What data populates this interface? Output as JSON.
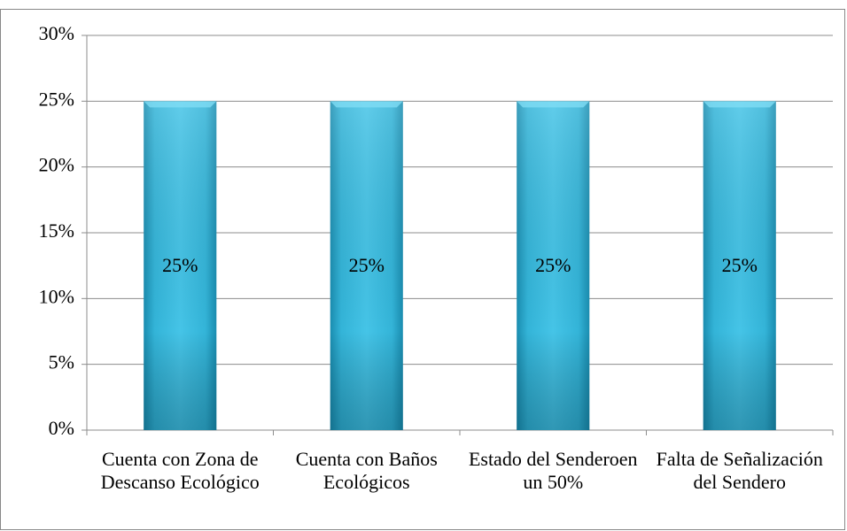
{
  "chart_data": {
    "type": "bar",
    "categories": [
      "Cuenta con Zona de Descanso Ecológico",
      "Cuenta con Baños Ecológicos",
      "Estado del Senderoen un 50%",
      "Falta de Señalización del Sendero"
    ],
    "values": [
      25,
      25,
      25,
      25
    ],
    "value_labels": [
      "25%",
      "25%",
      "25%",
      "25%"
    ],
    "color": "#3bbde0",
    "ylim": [
      0,
      30
    ],
    "yticks": [
      {
        "value": 0,
        "label": "0%"
      },
      {
        "value": 5,
        "label": "5%"
      },
      {
        "value": 10,
        "label": "10%"
      },
      {
        "value": 15,
        "label": "15%"
      },
      {
        "value": 20,
        "label": "20%"
      },
      {
        "value": 25,
        "label": "25%"
      },
      {
        "value": 30,
        "label": "30%"
      }
    ],
    "grid": true
  }
}
